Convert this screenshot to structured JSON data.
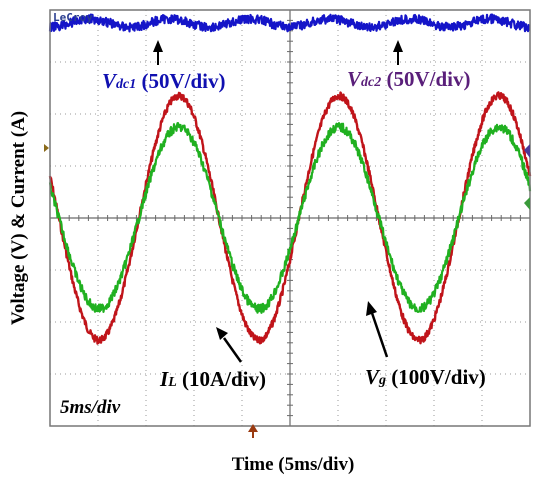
{
  "brand": "LeCroy",
  "chart_data": {
    "type": "line",
    "ylabel": "Voltage (V) & Current (A)",
    "xlabel": "Time (5ms/div)",
    "timebase": "5ms/div",
    "x_divisions": 10,
    "y_divisions": 8,
    "grid": true,
    "series": [
      {
        "name": "Vdc1",
        "sub": "dc1",
        "scale": "(50V/div)",
        "color": "#1515c8",
        "level_div": 3.75,
        "ripple_div": 0.08,
        "ripple_cycles": 6
      },
      {
        "name": "Vdc2",
        "sub": "dc2",
        "scale": "(50V/div)",
        "color": "#1515c8"
      },
      {
        "name": "IL",
        "sub": "L",
        "scale": "(10A/div)",
        "color": "#c0141a",
        "amplitude_div": 2.35,
        "cycles": 3,
        "phase_start_deg": -200
      },
      {
        "name": "Vg",
        "sub": "g",
        "scale": "(100V/div)",
        "color": "#20b020",
        "amplitude_div": 1.75,
        "cycles": 3,
        "phase_start_deg": -200
      }
    ]
  }
}
